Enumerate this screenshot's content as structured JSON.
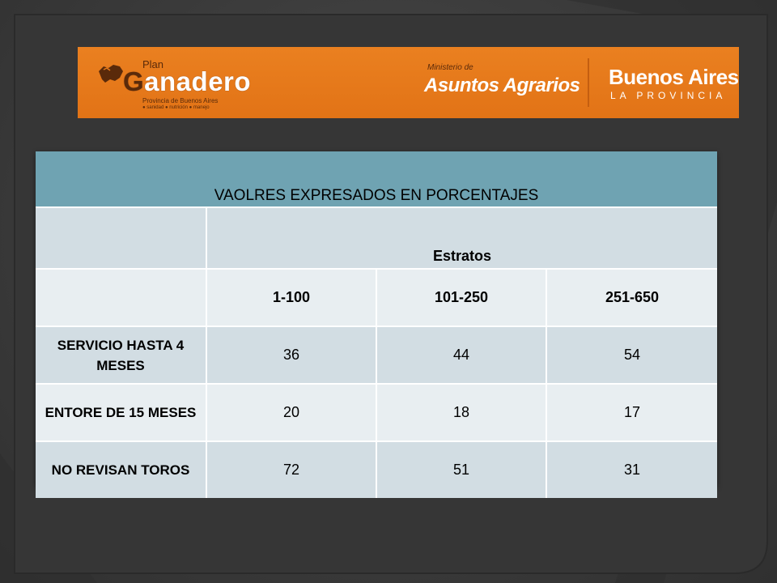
{
  "banner": {
    "plan": "Plan",
    "ganadero_g": "G",
    "ganadero_rest": "anadero",
    "provincia": "Provincia de Buenos Aires",
    "tagline": "● sanidad ● nutrición ● manejo",
    "ministerio": "Ministerio de",
    "asuntos": "Asuntos Agrarios",
    "ba_title": "Buenos Aires",
    "ba_sub": "LA PROVINCIA"
  },
  "table": {
    "caption": "VAOLRES EXPRESADOS EN PORCENTAJES",
    "group_header": "Estratos",
    "columns": [
      "1-100",
      "101-250",
      "251-650"
    ],
    "rows": [
      {
        "label": "SERVICIO HASTA 4 MESES",
        "values": [
          "36",
          "44",
          "54"
        ]
      },
      {
        "label": "ENTORE DE 15 MESES",
        "values": [
          "20",
          "18",
          "17"
        ]
      },
      {
        "label": "NO REVISAN TOROS",
        "values": [
          "72",
          "51",
          "31"
        ]
      }
    ]
  },
  "colors": {
    "banner": "#e67a1b",
    "caption_bg": "#6fa3b2",
    "row_dark": "#d2dde3",
    "row_light": "#e8eef1",
    "background": "#3a3a3a"
  }
}
